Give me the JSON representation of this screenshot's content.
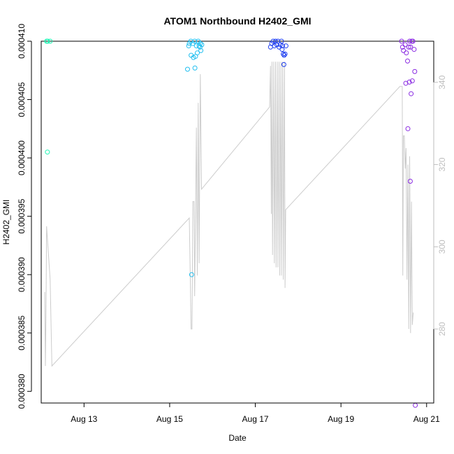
{
  "chart_data": {
    "type": "scatter",
    "title": "ATOM1 Northbound H2402_GMI",
    "xlabel": "Date",
    "ylabel": "H2402_GMI",
    "xlim": [
      "2024-08-12 00:00",
      "2024-08-21 04:00"
    ],
    "ylim": [
      0.000379,
      0.00041
    ],
    "x_ticks": [
      {
        "label": "Aug 13",
        "value": "2024-08-13 00:00"
      },
      {
        "label": "Aug 15",
        "value": "2024-08-15 00:00"
      },
      {
        "label": "Aug 17",
        "value": "2024-08-17 00:00"
      },
      {
        "label": "Aug 19",
        "value": "2024-08-19 00:00"
      },
      {
        "label": "Aug 21",
        "value": "2024-08-21 00:00"
      }
    ],
    "y_ticks": [
      {
        "label": "0.000380",
        "value": 0.00038
      },
      {
        "label": "0.000385",
        "value": 0.000385
      },
      {
        "label": "0.000390",
        "value": 0.00039
      },
      {
        "label": "0.000395",
        "value": 0.000395
      },
      {
        "label": "0.000400",
        "value": 0.0004
      },
      {
        "label": "0.000405",
        "value": 0.000405
      },
      {
        "label": "0.000410",
        "value": 0.00041
      }
    ],
    "y2lim": [
      262,
      350
    ],
    "y2_ticks": [
      {
        "label": "280",
        "value": 280
      },
      {
        "label": "300",
        "value": 300
      },
      {
        "label": "320",
        "value": 320
      },
      {
        "label": "340",
        "value": 340
      }
    ],
    "series": [
      {
        "color": "#1ef5b4",
        "points": [
          [
            "2024-08-12 03:00",
            0.00041
          ],
          [
            "2024-08-12 03:40",
            0.00041
          ],
          [
            "2024-08-12 05:00",
            0.00041
          ],
          [
            "2024-08-12 03:30",
            0.0004005
          ]
        ]
      },
      {
        "color": "#22bff0",
        "points": [
          [
            "2024-08-15 11:00",
            0.0004098
          ],
          [
            "2024-08-15 11:50",
            0.00041
          ],
          [
            "2024-08-15 13:00",
            0.0004098
          ],
          [
            "2024-08-15 14:00",
            0.00041
          ],
          [
            "2024-08-15 15:00",
            0.0004096
          ],
          [
            "2024-08-15 16:00",
            0.00041
          ],
          [
            "2024-08-15 17:00",
            0.0004095
          ],
          [
            "2024-08-15 17:30",
            0.0004092
          ],
          [
            "2024-08-15 18:00",
            0.0004097
          ],
          [
            "2024-08-15 10:40",
            0.0004096
          ],
          [
            "2024-08-15 12:00",
            0.0004088
          ],
          [
            "2024-08-15 13:20",
            0.0004086
          ],
          [
            "2024-08-15 14:30",
            0.0004087
          ],
          [
            "2024-08-15 15:30",
            0.000409
          ],
          [
            "2024-08-15 16:30",
            0.0004096
          ],
          [
            "2024-08-15 17:10",
            0.0004098
          ],
          [
            "2024-08-15 10:00",
            0.0004076
          ],
          [
            "2024-08-15 14:10",
            0.0004077
          ],
          [
            "2024-08-15 12:20",
            0.00039
          ]
        ]
      },
      {
        "color": "#1f3ff0",
        "points": [
          [
            "2024-08-17 08:30",
            0.0004095
          ],
          [
            "2024-08-17 09:10",
            0.0004098
          ],
          [
            "2024-08-17 10:00",
            0.00041
          ],
          [
            "2024-08-17 10:40",
            0.0004096
          ],
          [
            "2024-08-17 11:20",
            0.00041
          ],
          [
            "2024-08-17 12:00",
            0.0004097
          ],
          [
            "2024-08-17 12:40",
            0.00041
          ],
          [
            "2024-08-17 13:20",
            0.0004095
          ],
          [
            "2024-08-17 14:00",
            0.0004097
          ],
          [
            "2024-08-17 14:40",
            0.00041
          ],
          [
            "2024-08-17 15:10",
            0.0004096
          ],
          [
            "2024-08-17 15:40",
            0.0004089
          ],
          [
            "2024-08-17 16:10",
            0.0004088
          ],
          [
            "2024-08-17 16:40",
            0.0004089
          ],
          [
            "2024-08-17 17:10",
            0.0004096
          ],
          [
            "2024-08-17 15:00",
            0.0004093
          ],
          [
            "2024-08-17 16:00",
            0.000408
          ]
        ]
      },
      {
        "color": "#8a2be2",
        "points": [
          [
            "2024-08-20 10:00",
            0.00041
          ],
          [
            "2024-08-20 10:30",
            0.0004095
          ],
          [
            "2024-08-20 11:00",
            0.0004092
          ],
          [
            "2024-08-20 12:00",
            0.0004097
          ],
          [
            "2024-08-20 12:40",
            0.000409
          ],
          [
            "2024-08-20 13:20",
            0.0004083
          ],
          [
            "2024-08-20 14:00",
            0.0004095
          ],
          [
            "2024-08-20 14:30",
            0.00041
          ],
          [
            "2024-08-20 15:00",
            0.0004095
          ],
          [
            "2024-08-20 15:40",
            0.00041
          ],
          [
            "2024-08-20 16:20",
            0.00041
          ],
          [
            "2024-08-20 17:00",
            0.0004093
          ],
          [
            "2024-08-20 17:20",
            0.0004074
          ],
          [
            "2024-08-20 16:00",
            0.0004066
          ],
          [
            "2024-08-20 14:20",
            0.0004065
          ],
          [
            "2024-08-20 12:20",
            0.0004064
          ],
          [
            "2024-08-20 15:20",
            0.0004055
          ],
          [
            "2024-08-20 13:30",
            0.0004025
          ],
          [
            "2024-08-20 14:50",
            0.000398
          ],
          [
            "2024-08-20 17:40",
            0.0003788
          ]
        ]
      }
    ],
    "secondary_line": {
      "color": "#cccccc",
      "axis": "right",
      "points": [
        [
          "2024-08-12 02:00",
          289
        ],
        [
          "2024-08-12 02:20",
          271
        ],
        [
          "2024-08-12 02:40",
          283
        ],
        [
          "2024-08-12 03:00",
          305
        ],
        [
          "2024-08-12 05:00",
          292
        ],
        [
          "2024-08-12 06:00",
          271
        ],
        [
          "2024-08-15 11:00",
          307
        ],
        [
          "2024-08-15 11:20",
          298
        ],
        [
          "2024-08-15 12:00",
          280
        ],
        [
          "2024-08-15 12:30",
          280
        ],
        [
          "2024-08-15 13:00",
          311
        ],
        [
          "2024-08-15 13:40",
          311
        ],
        [
          "2024-08-15 14:00",
          288
        ],
        [
          "2024-08-15 15:00",
          329
        ],
        [
          "2024-08-15 15:30",
          293
        ],
        [
          "2024-08-15 16:00",
          335
        ],
        [
          "2024-08-15 16:30",
          296
        ],
        [
          "2024-08-15 17:10",
          342
        ],
        [
          "2024-08-15 17:50",
          314
        ],
        [
          "2024-08-17 08:00",
          334
        ],
        [
          "2024-08-17 08:30",
          344
        ],
        [
          "2024-08-17 09:00",
          308
        ],
        [
          "2024-08-17 09:20",
          345
        ],
        [
          "2024-08-17 09:40",
          298
        ],
        [
          "2024-08-17 10:20",
          345
        ],
        [
          "2024-08-17 10:40",
          296
        ],
        [
          "2024-08-17 11:20",
          345
        ],
        [
          "2024-08-17 11:40",
          295
        ],
        [
          "2024-08-17 12:20",
          345
        ],
        [
          "2024-08-17 12:40",
          295
        ],
        [
          "2024-08-17 13:20",
          345
        ],
        [
          "2024-08-17 13:40",
          293
        ],
        [
          "2024-08-17 14:20",
          345
        ],
        [
          "2024-08-17 14:40",
          293
        ],
        [
          "2024-08-17 15:20",
          345
        ],
        [
          "2024-08-17 15:40",
          292
        ],
        [
          "2024-08-17 16:20",
          345
        ],
        [
          "2024-08-17 16:40",
          290
        ],
        [
          "2024-08-17 17:00",
          309
        ],
        [
          "2024-08-20 09:00",
          339
        ],
        [
          "2024-08-20 10:20",
          339
        ],
        [
          "2024-08-20 10:40",
          293
        ],
        [
          "2024-08-20 11:00",
          327
        ],
        [
          "2024-08-20 11:30",
          327
        ],
        [
          "2024-08-20 12:00",
          319
        ],
        [
          "2024-08-20 12:30",
          324
        ],
        [
          "2024-08-20 13:00",
          292
        ],
        [
          "2024-08-20 13:30",
          320
        ],
        [
          "2024-08-20 14:00",
          280
        ],
        [
          "2024-08-20 14:30",
          322
        ],
        [
          "2024-08-20 15:00",
          279
        ],
        [
          "2024-08-20 15:30",
          311
        ],
        [
          "2024-08-20 16:00",
          281
        ],
        [
          "2024-08-20 16:30",
          284
        ]
      ]
    },
    "grid": false,
    "legend": "none"
  }
}
